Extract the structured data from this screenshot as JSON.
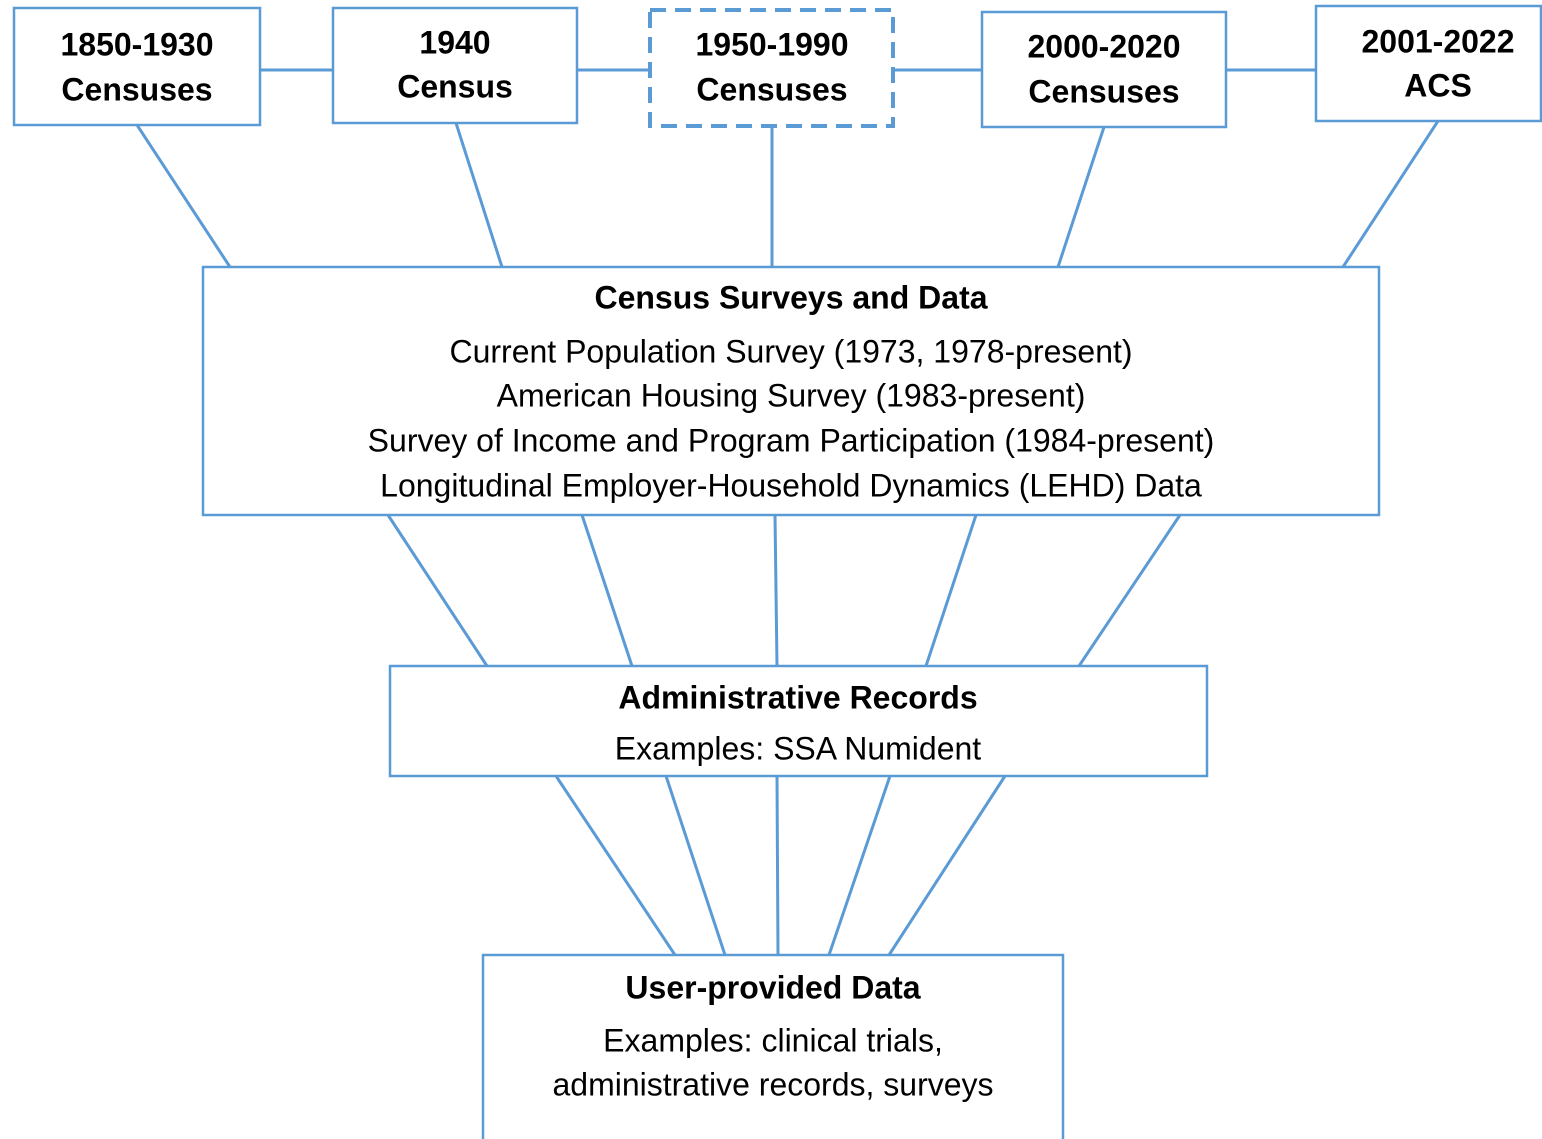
{
  "top_nodes": [
    {
      "lines": [
        "1850-1930",
        "Censuses"
      ]
    },
    {
      "lines": [
        "1940",
        "Census"
      ]
    },
    {
      "lines": [
        "1950-1990",
        "Censuses"
      ]
    },
    {
      "lines": [
        "2000-2020",
        "Censuses"
      ]
    },
    {
      "lines": [
        "2001-2022",
        "ACS"
      ]
    }
  ],
  "surveys": {
    "title": "Census Surveys and Data",
    "items": [
      "Current Population Survey (1973, 1978-present)",
      "American Housing Survey (1983-present)",
      "Survey of Income and Program Participation (1984-present)",
      "Longitudinal Employer-Household Dynamics (LEHD) Data"
    ]
  },
  "admin": {
    "title": "Administrative Records",
    "example": "Examples: SSA Numident"
  },
  "user": {
    "title": "User-provided Data",
    "lines": [
      "Examples: clinical trials,",
      "administrative records, surveys"
    ]
  }
}
